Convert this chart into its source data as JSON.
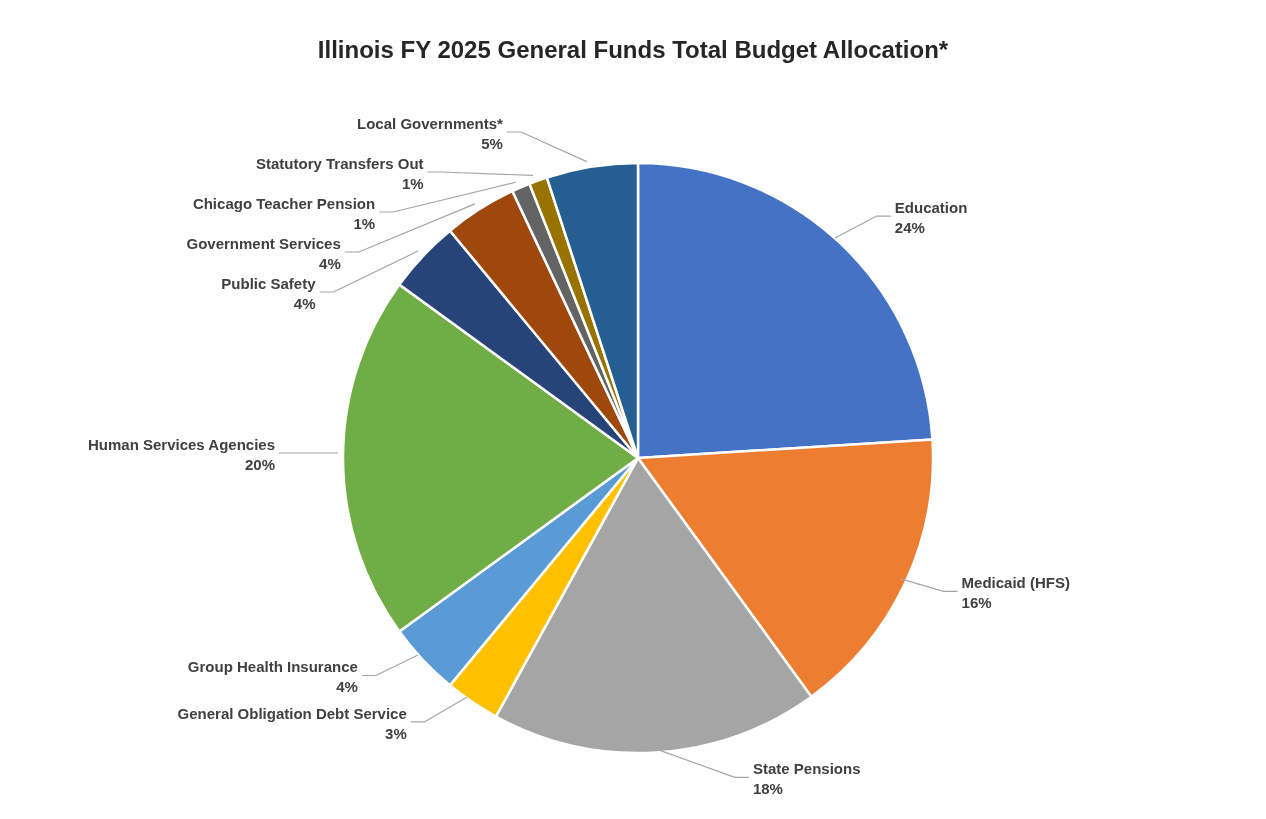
{
  "chart_data": {
    "type": "pie",
    "title": "Illinois FY 2025 General Funds Total Budget Allocation*",
    "categories": [
      "Education",
      "Medicaid (HFS)",
      "State Pensions",
      "General Obligation Debt Service",
      "Group Health Insurance",
      "Human Services Agencies",
      "Public Safety",
      "Government Services",
      "Chicago Teacher Pension",
      "Statutory Transfers Out",
      "Local Governments*"
    ],
    "values": [
      24,
      16,
      18,
      3,
      4,
      20,
      4,
      4,
      1,
      1,
      5
    ],
    "value_labels": [
      "24%",
      "16%",
      "18%",
      "3%",
      "4%",
      "20%",
      "4%",
      "4%",
      "1%",
      "1%",
      "5%"
    ],
    "colors": [
      "#4472c4",
      "#ed7d31",
      "#a5a5a5",
      "#ffc000",
      "#5b9bd5",
      "#70ad47",
      "#264478",
      "#9e480e",
      "#636363",
      "#997300",
      "#255e91"
    ]
  }
}
